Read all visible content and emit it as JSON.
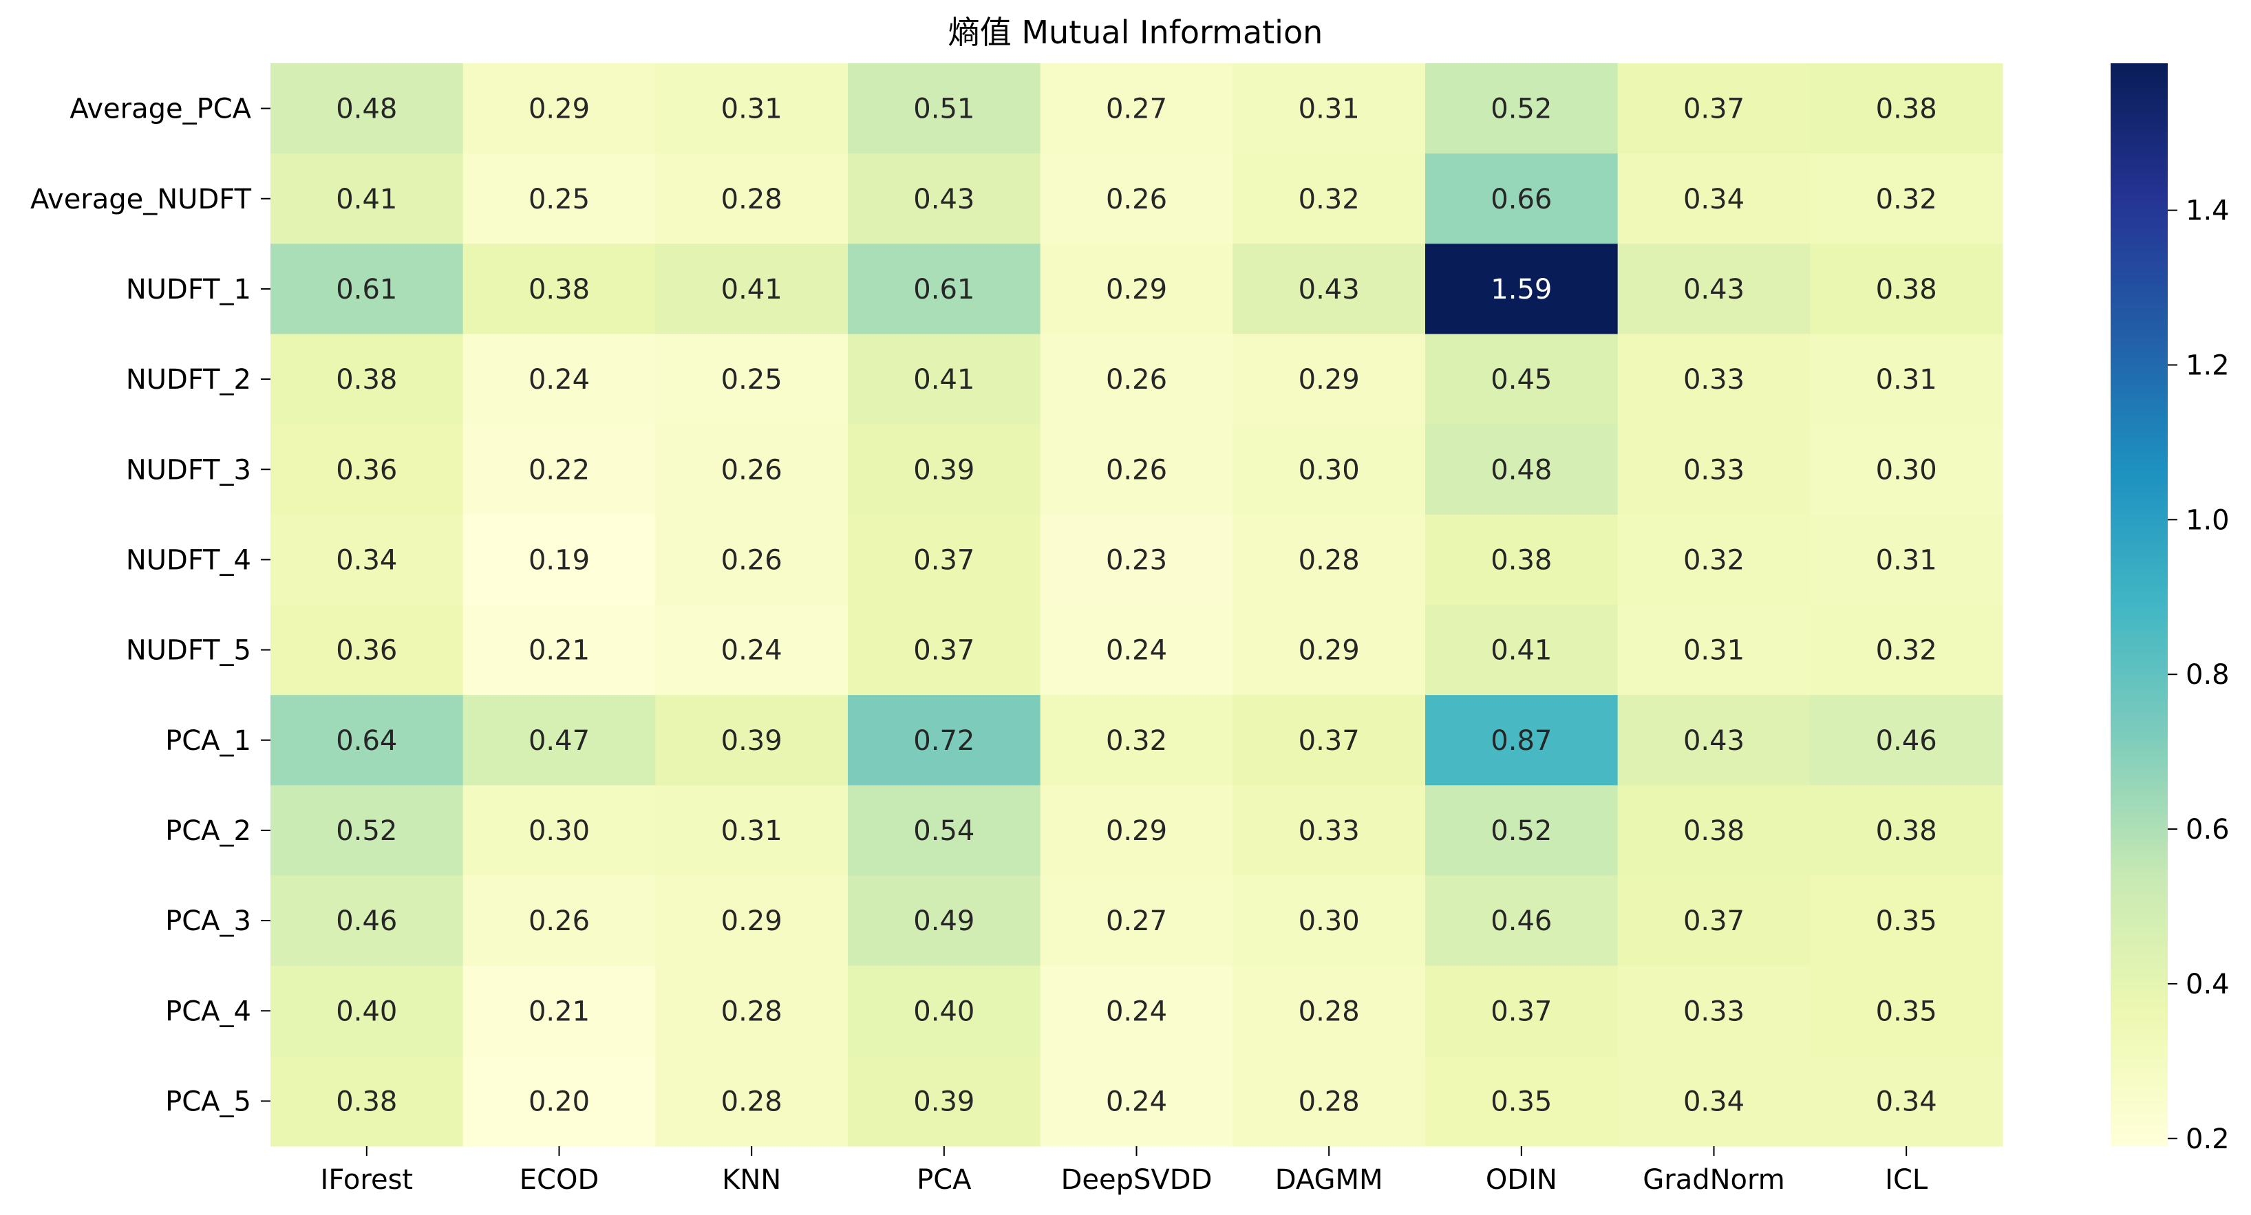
{
  "chart_data": {
    "type": "heatmap",
    "title": "熵值 Mutual Information",
    "xlabel": "",
    "ylabel": "",
    "columns": [
      "IForest",
      "ECOD",
      "KNN",
      "PCA",
      "DeepSVDD",
      "DAGMM",
      "ODIN",
      "GradNorm",
      "ICL"
    ],
    "rows": [
      "Average_PCA",
      "Average_NUDFT",
      "NUDFT_1",
      "NUDFT_2",
      "NUDFT_3",
      "NUDFT_4",
      "NUDFT_5",
      "PCA_1",
      "PCA_2",
      "PCA_3",
      "PCA_4",
      "PCA_5"
    ],
    "values": [
      [
        0.48,
        0.29,
        0.31,
        0.51,
        0.27,
        0.31,
        0.52,
        0.37,
        0.38
      ],
      [
        0.41,
        0.25,
        0.28,
        0.43,
        0.26,
        0.32,
        0.66,
        0.34,
        0.32
      ],
      [
        0.61,
        0.38,
        0.41,
        0.61,
        0.29,
        0.43,
        1.59,
        0.43,
        0.38
      ],
      [
        0.38,
        0.24,
        0.25,
        0.41,
        0.26,
        0.29,
        0.45,
        0.33,
        0.31
      ],
      [
        0.36,
        0.22,
        0.26,
        0.39,
        0.26,
        0.3,
        0.48,
        0.33,
        0.3
      ],
      [
        0.34,
        0.19,
        0.26,
        0.37,
        0.23,
        0.28,
        0.38,
        0.32,
        0.31
      ],
      [
        0.36,
        0.21,
        0.24,
        0.37,
        0.24,
        0.29,
        0.41,
        0.31,
        0.32
      ],
      [
        0.64,
        0.47,
        0.39,
        0.72,
        0.32,
        0.37,
        0.87,
        0.43,
        0.46
      ],
      [
        0.52,
        0.3,
        0.31,
        0.54,
        0.29,
        0.33,
        0.52,
        0.38,
        0.38
      ],
      [
        0.46,
        0.26,
        0.29,
        0.49,
        0.27,
        0.3,
        0.46,
        0.37,
        0.35
      ],
      [
        0.4,
        0.21,
        0.28,
        0.4,
        0.24,
        0.28,
        0.37,
        0.33,
        0.35
      ],
      [
        0.38,
        0.2,
        0.28,
        0.39,
        0.24,
        0.28,
        0.35,
        0.34,
        0.34
      ]
    ],
    "colormap": "YlGnBu",
    "vmin": 0.19,
    "vmax": 1.59,
    "colorbar_ticks": [
      "0.2",
      "0.4",
      "0.6",
      "0.8",
      "1.0",
      "1.2",
      "1.4"
    ],
    "annotations": true,
    "grid": false,
    "legend": "colorbar-right"
  }
}
